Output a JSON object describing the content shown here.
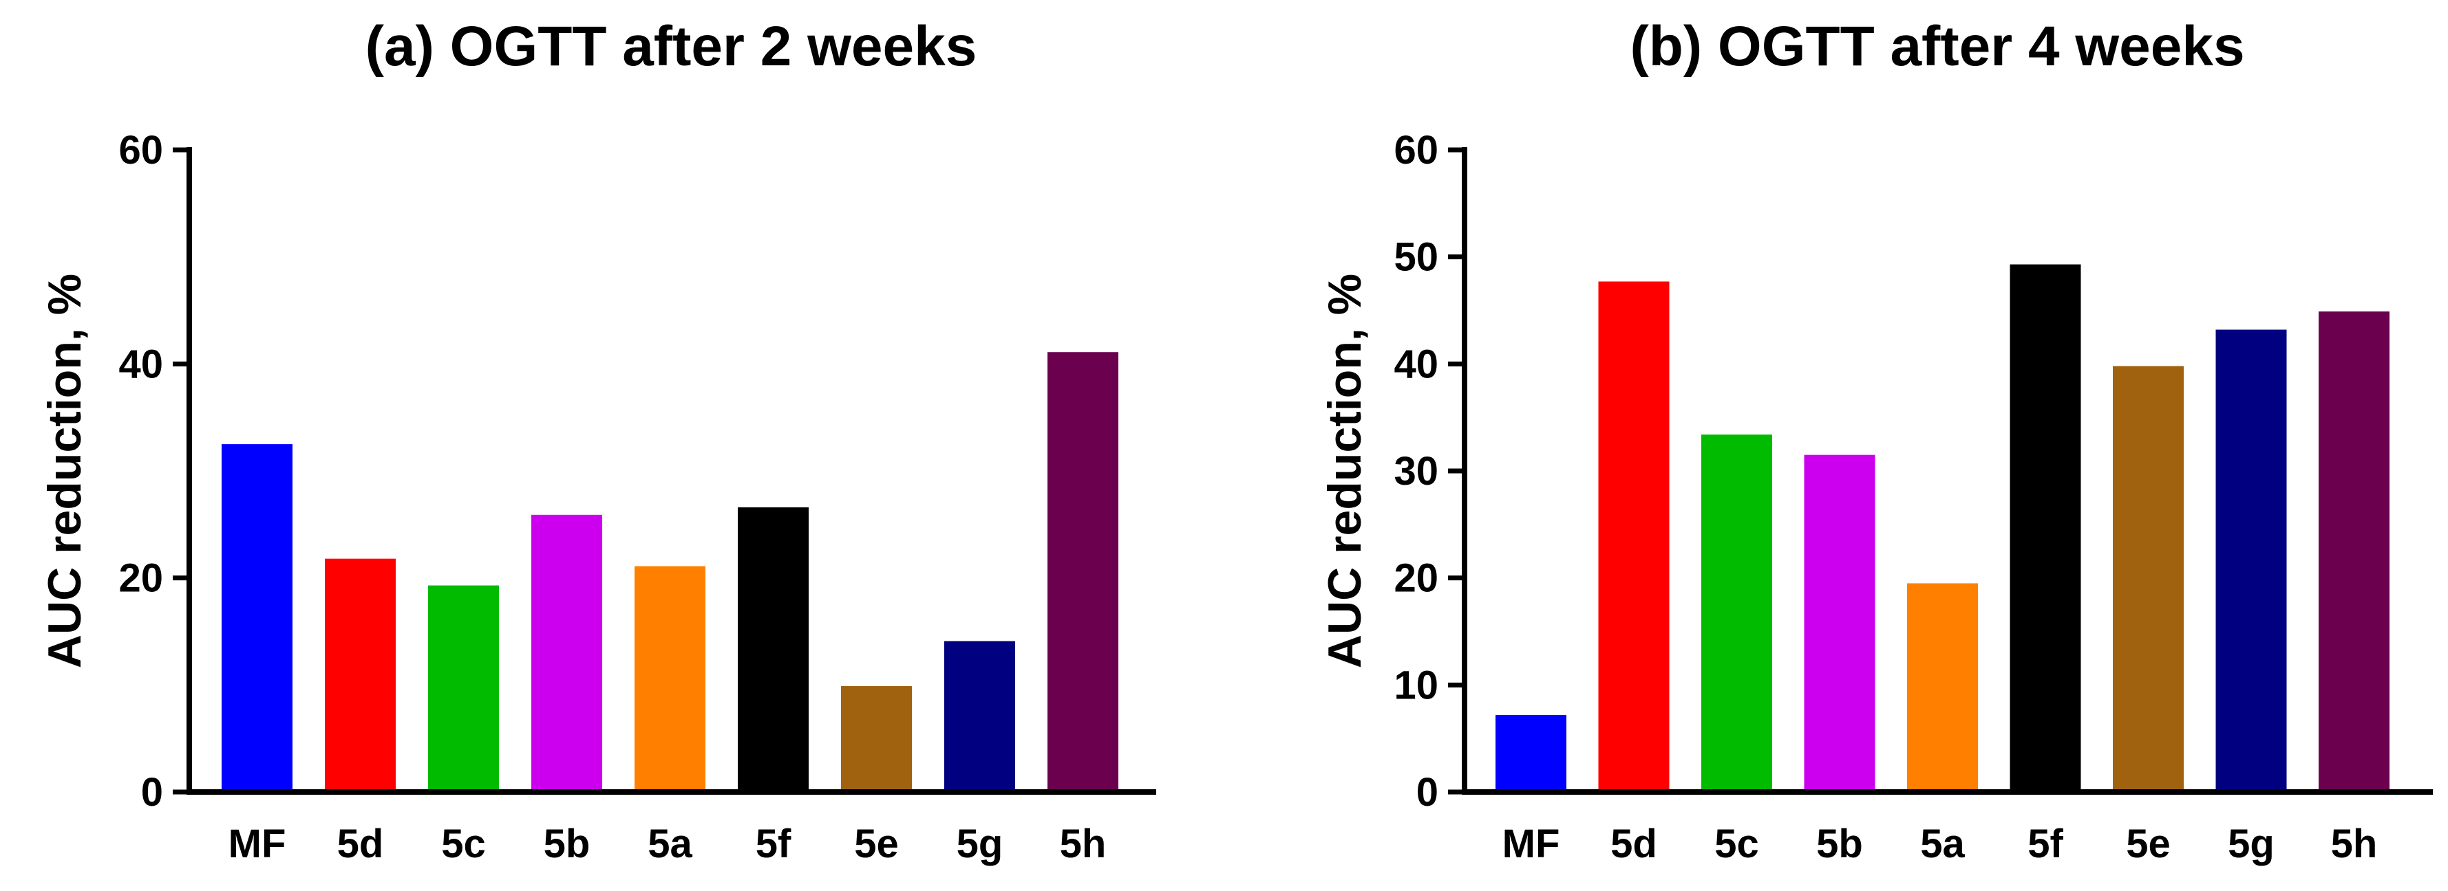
{
  "chart_data": [
    {
      "type": "bar",
      "title": "(a) OGTT after 2 weeks",
      "xlabel": "",
      "ylabel": "AUC reduction, %",
      "ylim": [
        0,
        60
      ],
      "yticks": [
        0,
        20,
        40,
        60
      ],
      "grid": false,
      "categories": [
        "MF",
        "5d",
        "5c",
        "5b",
        "5a",
        "5f",
        "5e",
        "5g",
        "5h"
      ],
      "values": [
        32.5,
        21.8,
        19.3,
        25.9,
        21.1,
        26.6,
        9.9,
        14.1,
        41.1
      ],
      "colors": [
        "#0000ff",
        "#ff0000",
        "#00bb00",
        "#cc00ee",
        "#ff8000",
        "#000000",
        "#a0620f",
        "#000080",
        "#6a004e"
      ]
    },
    {
      "type": "bar",
      "title": "(b) OGTT after 4 weeks",
      "xlabel": "",
      "ylabel": "AUC reduction, %",
      "ylim": [
        0,
        60
      ],
      "yticks": [
        0,
        10,
        20,
        30,
        40,
        50,
        60
      ],
      "grid": false,
      "categories": [
        "MF",
        "5d",
        "5c",
        "5b",
        "5a",
        "5f",
        "5e",
        "5g",
        "5h"
      ],
      "values": [
        7.2,
        47.7,
        33.4,
        31.5,
        19.5,
        49.3,
        39.8,
        43.2,
        44.9
      ],
      "colors": [
        "#0000ff",
        "#ff0000",
        "#00bb00",
        "#cc00ee",
        "#ff8000",
        "#000000",
        "#a0620f",
        "#000080",
        "#6a004e"
      ]
    }
  ]
}
